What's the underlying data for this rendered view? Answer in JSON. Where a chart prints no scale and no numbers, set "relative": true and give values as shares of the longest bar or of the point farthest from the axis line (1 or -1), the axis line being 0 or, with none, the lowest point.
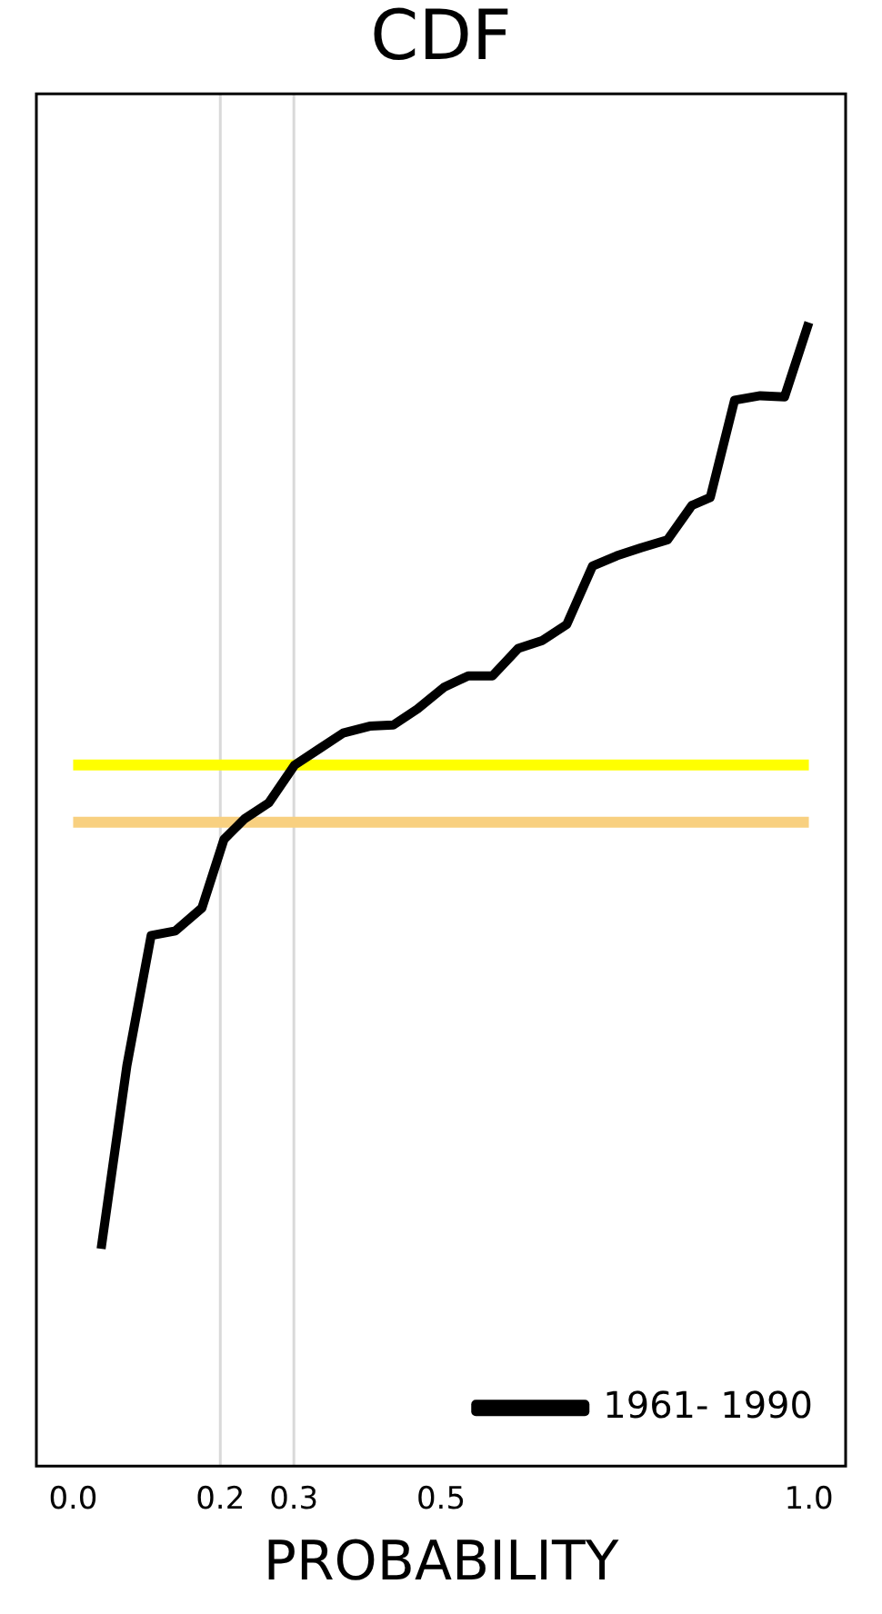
{
  "chart_data": {
    "type": "line",
    "title": "CDF",
    "xlabel": "PROBABILITY",
    "relative": true,
    "grid": false,
    "legend": "bottom right",
    "marker": "none",
    "line_style": "solid",
    "xlim": [
      -0.05,
      1.05
    ],
    "xticks": [
      {
        "value": 0,
        "label": "0.0"
      },
      0.2,
      0.3,
      0.5,
      {
        "value": 1,
        "label": "1.0"
      }
    ],
    "series": [
      {
        "name": "1961- 1990",
        "color": "#000000",
        "x": [
          0.038,
          0.073,
          0.106,
          0.139,
          0.175,
          0.205,
          0.233,
          0.266,
          0.301,
          0.334,
          0.367,
          0.403,
          0.435,
          0.468,
          0.504,
          0.537,
          0.57,
          0.605,
          0.638,
          0.671,
          0.706,
          0.739,
          0.772,
          0.808,
          0.841,
          0.866,
          0.899,
          0.934,
          0.967,
          1.0
        ],
        "values": [
          0.19,
          0.35,
          0.464,
          0.468,
          0.488,
          0.548,
          0.566,
          0.58,
          0.613,
          0.627,
          0.641,
          0.647,
          0.648,
          0.662,
          0.681,
          0.691,
          0.691,
          0.715,
          0.722,
          0.736,
          0.787,
          0.796,
          0.803,
          0.81,
          0.84,
          0.847,
          0.932,
          0.936,
          0.935,
          1.0
        ]
      }
    ],
    "ref_lines": [
      {
        "axis": "x",
        "value": 0.2,
        "color": "#d9d9d9"
      },
      {
        "axis": "x",
        "value": 0.3,
        "color": "#d9d9d9"
      },
      {
        "axis": "y",
        "value": 0.613,
        "color": "#ffff00"
      },
      {
        "axis": "y",
        "value": 0.563,
        "color": "#f8d080"
      }
    ]
  }
}
